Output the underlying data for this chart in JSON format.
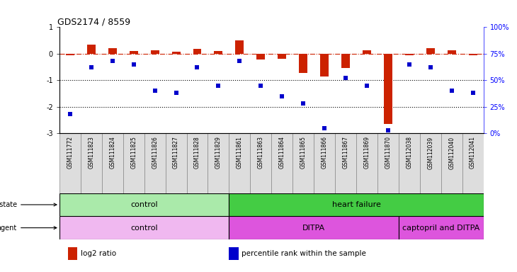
{
  "title": "GDS2174 / 8559",
  "samples": [
    "GSM111772",
    "GSM111823",
    "GSM111824",
    "GSM111825",
    "GSM111826",
    "GSM111827",
    "GSM111828",
    "GSM111829",
    "GSM111861",
    "GSM111863",
    "GSM111864",
    "GSM111865",
    "GSM111866",
    "GSM111867",
    "GSM111869",
    "GSM111870",
    "GSM112038",
    "GSM112039",
    "GSM112040",
    "GSM112041"
  ],
  "log2_ratio": [
    -0.05,
    0.35,
    0.2,
    0.1,
    0.12,
    0.08,
    0.18,
    0.1,
    0.5,
    -0.22,
    -0.18,
    -0.72,
    -0.85,
    -0.55,
    0.12,
    -2.65,
    -0.05,
    0.22,
    0.12,
    -0.07
  ],
  "pct_rank": [
    18,
    62,
    68,
    65,
    40,
    38,
    62,
    45,
    68,
    45,
    35,
    28,
    5,
    52,
    45,
    3,
    65,
    62,
    40,
    38
  ],
  "ylim_left": [
    -3,
    1
  ],
  "ylim_right": [
    0,
    100
  ],
  "yticks_left": [
    -3,
    -2,
    -1,
    0,
    1
  ],
  "ytick_labels_left": [
    "-3",
    "-2",
    "-1",
    "0",
    "1"
  ],
  "yticks_right": [
    0,
    25,
    50,
    75,
    100
  ],
  "ytick_labels_right": [
    "0%",
    "25%",
    "50%",
    "75%",
    "100%"
  ],
  "dotted_lines": [
    -1,
    -2
  ],
  "bar_color": "#cc2200",
  "dot_color": "#0000cc",
  "hline_color": "#cc2200",
  "disease_state_groups": [
    {
      "label": "control",
      "start": 0,
      "end": 8,
      "color": "#aaeaaa"
    },
    {
      "label": "heart failure",
      "start": 8,
      "end": 20,
      "color": "#44cc44"
    }
  ],
  "agent_groups": [
    {
      "label": "control",
      "start": 0,
      "end": 8,
      "color": "#f0b8f0"
    },
    {
      "label": "DITPA",
      "start": 8,
      "end": 16,
      "color": "#dd55dd"
    },
    {
      "label": "captopril and DITPA",
      "start": 16,
      "end": 20,
      "color": "#dd55dd"
    }
  ],
  "legend_items": [
    {
      "label": "log2 ratio",
      "color": "#cc2200"
    },
    {
      "label": "percentile rank within the sample",
      "color": "#0000cc"
    }
  ],
  "bg_color": "#ffffff",
  "label_box_color": "#dddddd",
  "label_box_border": "#888888"
}
